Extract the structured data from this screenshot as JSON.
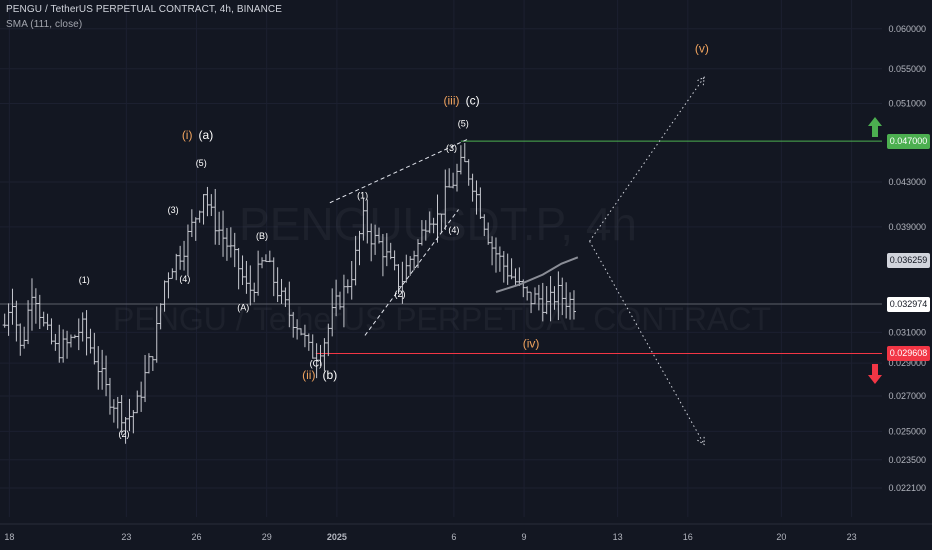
{
  "header": {
    "title": "PENGU / TetherUS PERPETUAL CONTRACT, 4h, BINANCE",
    "indicator": "SMA (111, close)"
  },
  "watermark": {
    "symbol": "PENGUUSDT.P, 4h",
    "name": "PENGU / TetherUS PERPETUAL CONTRACT"
  },
  "colors": {
    "background": "#131722",
    "candle": "#c7c9d0",
    "sma": "#8a8d96",
    "resistance": "#4caf50",
    "support": "#f23645",
    "wave_orange": "#f0a35e",
    "text": "#d1d4dc",
    "grid": "#1c2030"
  },
  "price_badges": [
    {
      "label": "0.047000",
      "value": 0.047,
      "bg": "#4caf50",
      "fg": "#ffffff"
    },
    {
      "label": "0.036259",
      "value": 0.036259,
      "bg": "#d1d4dc",
      "fg": "#131722"
    },
    {
      "label": "0.032974",
      "value": 0.032974,
      "bg": "#ffffff",
      "fg": "#131722"
    },
    {
      "label": "0.029608",
      "value": 0.029608,
      "bg": "#f23645",
      "fg": "#ffffff"
    }
  ],
  "arrows": [
    {
      "name": "up-arrow-icon",
      "value": 0.0485,
      "color": "#4caf50",
      "dir": "up"
    },
    {
      "name": "down-arrow-icon",
      "value": 0.0283,
      "color": "#f23645",
      "dir": "down"
    }
  ],
  "chart_data": {
    "type": "candlestick",
    "y_scale": "log",
    "ylim": [
      0.0213,
      0.0625
    ],
    "y_ticks": [
      {
        "label": "0.060000",
        "value": 0.06
      },
      {
        "label": "0.055000",
        "value": 0.055
      },
      {
        "label": "0.051000",
        "value": 0.051
      },
      {
        "label": "0.043000",
        "value": 0.043
      },
      {
        "label": "0.039000",
        "value": 0.039
      },
      {
        "label": "0.031000",
        "value": 0.031
      },
      {
        "label": "0.029000",
        "value": 0.029
      },
      {
        "label": "0.027000",
        "value": 0.027
      },
      {
        "label": "0.025000",
        "value": 0.025
      },
      {
        "label": "0.023500",
        "value": 0.0235
      },
      {
        "label": "0.022100",
        "value": 0.0221
      }
    ],
    "x_ticks": [
      {
        "label": "18",
        "t": 0
      },
      {
        "label": "23",
        "t": 5
      },
      {
        "label": "26",
        "t": 8
      },
      {
        "label": "29",
        "t": 11
      },
      {
        "label": "2025",
        "t": 14
      },
      {
        "label": "6",
        "t": 19
      },
      {
        "label": "9",
        "t": 22
      },
      {
        "label": "13",
        "t": 26
      },
      {
        "label": "16",
        "t": 29
      },
      {
        "label": "20",
        "t": 33
      },
      {
        "label": "23",
        "t": 36
      }
    ],
    "xlim": [
      -0.4,
      37.3
    ],
    "price_path": [
      [
        -0.2,
        0.0315
      ],
      [
        0.1,
        0.0338
      ],
      [
        0.5,
        0.0296
      ],
      [
        1.0,
        0.0345
      ],
      [
        1.5,
        0.0312
      ],
      [
        2.0,
        0.0298
      ],
      [
        2.5,
        0.0302
      ],
      [
        3.1,
        0.0314
      ],
      [
        3.7,
        0.0292
      ],
      [
        4.2,
        0.0271
      ],
      [
        4.6,
        0.0264
      ],
      [
        5.0,
        0.0257
      ],
      [
        5.4,
        0.0262
      ],
      [
        5.8,
        0.0282
      ],
      [
        6.2,
        0.0301
      ],
      [
        6.6,
        0.0345
      ],
      [
        7.0,
        0.0361
      ],
      [
        7.4,
        0.0371
      ],
      [
        7.9,
        0.0395
      ],
      [
        8.3,
        0.0422
      ],
      [
        8.6,
        0.0401
      ],
      [
        9.0,
        0.0386
      ],
      [
        9.4,
        0.0372
      ],
      [
        9.8,
        0.0357
      ],
      [
        10.2,
        0.0338
      ],
      [
        10.5,
        0.0346
      ],
      [
        10.9,
        0.0364
      ],
      [
        11.2,
        0.0352
      ],
      [
        11.6,
        0.0334
      ],
      [
        12.0,
        0.0322
      ],
      [
        12.4,
        0.0314
      ],
      [
        12.8,
        0.0298
      ],
      [
        13.1,
        0.0296
      ],
      [
        13.5,
        0.0306
      ],
      [
        13.9,
        0.0327
      ],
      [
        14.3,
        0.0339
      ],
      [
        14.7,
        0.0356
      ],
      [
        15.1,
        0.0397
      ],
      [
        15.5,
        0.0381
      ],
      [
        15.9,
        0.0374
      ],
      [
        16.3,
        0.0359
      ],
      [
        16.7,
        0.0344
      ],
      [
        17.1,
        0.0363
      ],
      [
        17.5,
        0.0376
      ],
      [
        17.9,
        0.0402
      ],
      [
        18.3,
        0.0398
      ],
      [
        18.7,
        0.042
      ],
      [
        19.1,
        0.0436
      ],
      [
        19.4,
        0.0449
      ],
      [
        19.8,
        0.043
      ],
      [
        20.2,
        0.0401
      ],
      [
        20.6,
        0.0375
      ],
      [
        21.0,
        0.0362
      ],
      [
        21.4,
        0.0352
      ],
      [
        21.8,
        0.0342
      ],
      [
        22.2,
        0.0333
      ],
      [
        22.6,
        0.0334
      ],
      [
        23.0,
        0.0328
      ],
      [
        23.4,
        0.0338
      ],
      [
        23.8,
        0.0333
      ],
      [
        24.2,
        0.033
      ]
    ],
    "sma_path": [
      [
        20.8,
        0.03385
      ],
      [
        21.8,
        0.0344
      ],
      [
        22.8,
        0.03515
      ],
      [
        23.6,
        0.036
      ],
      [
        24.3,
        0.0365
      ]
    ],
    "levels": [
      {
        "value": 0.047,
        "from_t": 19.3,
        "color": "#4caf50"
      },
      {
        "value": 0.029608,
        "from_t": 13.1,
        "color": "#f23645"
      },
      {
        "value": 0.032974,
        "from_t": -0.4,
        "color": "#5d606b"
      }
    ],
    "projections": [
      {
        "points": [
          [
            24.8,
            0.0378
          ],
          [
            29.7,
            0.054
          ]
        ]
      },
      {
        "points": [
          [
            24.8,
            0.0378
          ],
          [
            29.7,
            0.0243
          ]
        ]
      }
    ],
    "channel_lines": [
      {
        "points": [
          [
            13.7,
            0.0411
          ],
          [
            19.6,
            0.0472
          ]
        ]
      },
      {
        "points": [
          [
            15.2,
            0.0308
          ],
          [
            19.2,
            0.0405
          ]
        ]
      }
    ],
    "wave_labels": [
      {
        "text": "(i)",
        "t": 7.6,
        "v": 0.0472,
        "color": "#f0a35e",
        "size": 12
      },
      {
        "text": "(a)",
        "t": 8.4,
        "v": 0.0472,
        "color": "#ffffff",
        "size": 12
      },
      {
        "text": "(5)",
        "t": 8.2,
        "v": 0.0445,
        "color": "#ffffff",
        "size": 9
      },
      {
        "text": "(3)",
        "t": 7.0,
        "v": 0.0402,
        "color": "#ffffff",
        "size": 9
      },
      {
        "text": "(4)",
        "t": 7.5,
        "v": 0.0346,
        "color": "#ffffff",
        "size": 9
      },
      {
        "text": "(B)",
        "t": 10.8,
        "v": 0.038,
        "color": "#ffffff",
        "size": 9
      },
      {
        "text": "(A)",
        "t": 10.0,
        "v": 0.0325,
        "color": "#ffffff",
        "size": 9
      },
      {
        "text": "(1)",
        "t": 3.2,
        "v": 0.0345,
        "color": "#ffffff",
        "size": 9
      },
      {
        "text": "(2)",
        "t": 4.9,
        "v": 0.0247,
        "color": "#ffffff",
        "size": 9
      },
      {
        "text": "(C)",
        "t": 13.1,
        "v": 0.0288,
        "color": "#ffffff",
        "size": 9
      },
      {
        "text": "(ii)",
        "t": 12.8,
        "v": 0.028,
        "color": "#f0a35e",
        "size": 12
      },
      {
        "text": "(b)",
        "t": 13.7,
        "v": 0.028,
        "color": "#ffffff",
        "size": 12
      },
      {
        "text": "(1)",
        "t": 15.1,
        "v": 0.0415,
        "color": "#ffffff",
        "size": 9
      },
      {
        "text": "(2)",
        "t": 16.7,
        "v": 0.0335,
        "color": "#ffffff",
        "size": 9
      },
      {
        "text": "(3)",
        "t": 18.9,
        "v": 0.046,
        "color": "#ffffff",
        "size": 9
      },
      {
        "text": "(4)",
        "t": 19.0,
        "v": 0.0385,
        "color": "#ffffff",
        "size": 9
      },
      {
        "text": "(5)",
        "t": 19.4,
        "v": 0.0485,
        "color": "#ffffff",
        "size": 9
      },
      {
        "text": "(iii)",
        "t": 18.9,
        "v": 0.0509,
        "color": "#f0a35e",
        "size": 12
      },
      {
        "text": "(c)",
        "t": 19.8,
        "v": 0.0509,
        "color": "#ffffff",
        "size": 12
      },
      {
        "text": "(iv)",
        "t": 22.3,
        "v": 0.03,
        "color": "#f0a35e",
        "size": 12
      },
      {
        "text": "(v)",
        "t": 29.6,
        "v": 0.057,
        "color": "#f0a35e",
        "size": 12
      }
    ]
  }
}
